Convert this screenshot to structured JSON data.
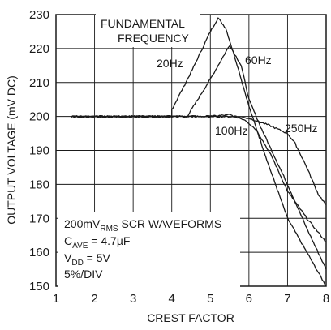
{
  "chart_data": {
    "type": "line",
    "xlabel": "CREST FACTOR",
    "ylabel": "OUTPUT VOLTAGE (mV DC)",
    "xlim": [
      1,
      8
    ],
    "ylim": [
      150,
      230
    ],
    "x_ticks": [
      "1",
      "2",
      "3",
      "4",
      "5",
      "6",
      "7",
      "8"
    ],
    "y_ticks": [
      "150",
      "160",
      "170",
      "180",
      "190",
      "200",
      "210",
      "220",
      "230"
    ],
    "grid": true,
    "series": [
      {
        "name": "20Hz",
        "x": [
          1.4,
          4.0,
          4.0,
          4.5,
          5.0,
          5.2,
          5.4,
          5.7,
          6.0,
          6.5,
          7.0,
          7.5,
          8.0
        ],
        "y": [
          200,
          200,
          202,
          213,
          225,
          229,
          226,
          215,
          203,
          186,
          170,
          160,
          150
        ]
      },
      {
        "name": "60Hz",
        "x": [
          1.4,
          4.4,
          5.0,
          5.5,
          5.8,
          6.0,
          6.3,
          7.0,
          7.5,
          8.0
        ],
        "y": [
          200,
          200,
          211,
          221,
          215,
          205,
          197,
          180,
          167,
          155
        ]
      },
      {
        "name": "100Hz",
        "x": [
          1.4,
          5.0,
          5.5,
          5.9,
          6.2,
          6.6,
          7.0,
          7.5,
          8.0
        ],
        "y": [
          200,
          200,
          200.5,
          199,
          196,
          188,
          178,
          170,
          163
        ]
      },
      {
        "name": "250Hz",
        "x": [
          1.4,
          5.5,
          6.0,
          6.5,
          7.0,
          7.2,
          7.5,
          7.8,
          8.0
        ],
        "y": [
          200,
          200,
          199.5,
          197.5,
          195,
          192,
          185,
          177,
          174
        ]
      }
    ],
    "labels": {
      "fundamental_line1": "FUNDAMENTAL",
      "fundamental_line2": "FREQUENCY",
      "s20": "20Hz",
      "s60": "60Hz",
      "s100": "100Hz",
      "s250": "250Hz"
    },
    "legend": {
      "line1_prefix": "200mV",
      "line1_sub": "RMS",
      "line1_suffix": " SCR WAVEFORMS",
      "line2_prefix": "C",
      "line2_sub": "AVE",
      "line2_suffix": " = 4.7µF",
      "line3_prefix": "V",
      "line3_sub": "DD",
      "line3_suffix": " = 5V",
      "line4": "5%/DIV"
    },
    "colors": {
      "line": "#1a1a1a",
      "grid": "#1a1a1a",
      "background": "#ffffff"
    }
  }
}
